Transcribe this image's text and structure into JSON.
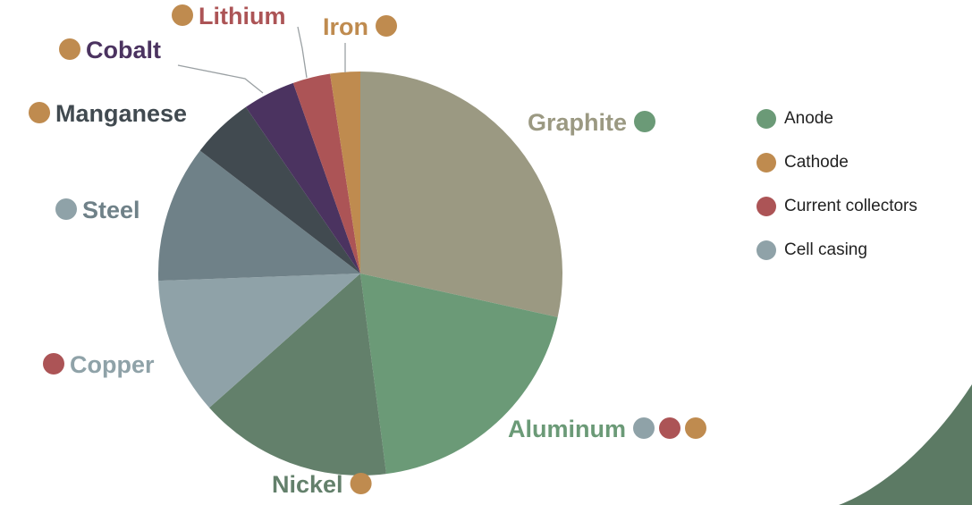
{
  "chart_data": {
    "type": "pie",
    "slices": [
      {
        "label": "Graphite",
        "value": 28.5,
        "color": "#9b9982",
        "tags": [
          "anode"
        ]
      },
      {
        "label": "Aluminum",
        "value": 19.5,
        "color": "#6b9a77",
        "tags": [
          "cell_casing",
          "current_collectors",
          "cathode"
        ]
      },
      {
        "label": "Nickel",
        "value": 15.5,
        "color": "#63806b",
        "tags": [
          "cathode"
        ]
      },
      {
        "label": "Copper",
        "value": 11,
        "color": "#8fa2a8",
        "tags": [
          "current_collectors"
        ]
      },
      {
        "label": "Steel",
        "value": 11,
        "color": "#6f8188",
        "tags": [
          "cell_casing"
        ]
      },
      {
        "label": "Manganese",
        "value": 5,
        "color": "#414a50",
        "tags": [
          "cathode"
        ]
      },
      {
        "label": "Cobalt",
        "value": 4.2,
        "color": "#4b3360",
        "tags": [
          "cathode"
        ]
      },
      {
        "label": "Lithium",
        "value": 3,
        "color": "#ac5456",
        "tags": [
          "cathode"
        ]
      },
      {
        "label": "Iron",
        "value": 2.4,
        "color": "#bf8b4f",
        "tags": [
          "cathode"
        ]
      }
    ],
    "legend": {
      "position": "right",
      "items": [
        {
          "key": "anode",
          "label": "Anode",
          "color": "#6b9a77"
        },
        {
          "key": "cathode",
          "label": "Cathode",
          "color": "#bf8b4f"
        },
        {
          "key": "current_collectors",
          "label": "Current collectors",
          "color": "#ac5456"
        },
        {
          "key": "cell_casing",
          "label": "Cell casing",
          "color": "#8fa2a8"
        }
      ]
    }
  },
  "colors": {
    "decoration": "#5c7a64"
  }
}
